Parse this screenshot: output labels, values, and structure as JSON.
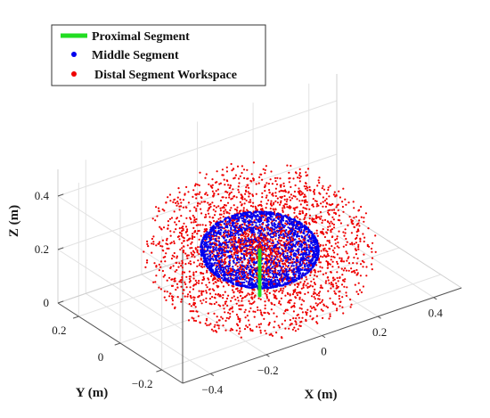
{
  "chart_data": {
    "type": "scatter",
    "projection": "3d",
    "grid": true,
    "legend_placement": "top-left",
    "xlabel": "X (m)",
    "ylabel": "Y (m)",
    "zlabel": "Z (m)",
    "xlim": [
      -0.5,
      0.5
    ],
    "ylim": [
      -0.3,
      0.3
    ],
    "zlim": [
      0,
      0.5
    ],
    "x_ticks": [
      -0.4,
      -0.2,
      0,
      0.2,
      0.4
    ],
    "x_tick_labels": [
      "−0.4",
      "−0.2",
      "0",
      "0.2",
      "0.4"
    ],
    "y_ticks": [
      -0.2,
      0,
      0.2
    ],
    "y_tick_labels": [
      "−0.2",
      "0",
      "0.2"
    ],
    "z_ticks": [
      0,
      0.2,
      0.4
    ],
    "z_tick_labels": [
      "0",
      "0.2",
      "0.4"
    ],
    "series": [
      {
        "name": "Proximal Segment",
        "kind": "line",
        "color": "#22dd22",
        "x": [
          0,
          0
        ],
        "y": [
          0,
          0
        ],
        "z": [
          0,
          0.17
        ]
      },
      {
        "name": "Middle Segment",
        "kind": "points",
        "color": "#0000ee",
        "shape": "sphere-surface",
        "center": [
          0,
          0,
          0.17
        ],
        "radius": 0.17
      },
      {
        "name": "Distal Segment Workspace",
        "kind": "points",
        "color": "#ee0000",
        "shape": "sphere-volume",
        "center": [
          0,
          0,
          0.17
        ],
        "radius": 0.34
      }
    ]
  }
}
